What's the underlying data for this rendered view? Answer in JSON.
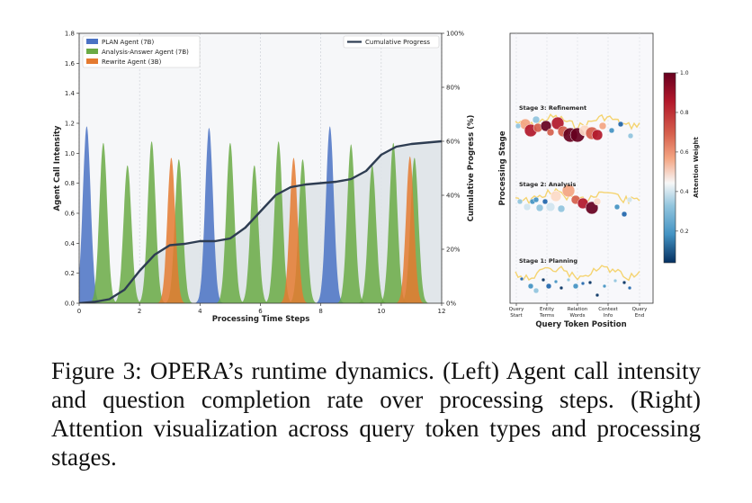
{
  "caption": "Figure 3: OPERA’s runtime dynamics. (Left) Agent call intensity and question completion rate over processing steps. (Right) Attention visualization across query token types and processing stages.",
  "colors": {
    "plan": "#4a72c4",
    "analysis": "#6aaa45",
    "rewrite": "#e47a30",
    "progress": "#2e3d52",
    "progress_fill": "#dfe3e8"
  },
  "chart_data": [
    {
      "type": "area",
      "xlabel": "Processing Time Steps",
      "ylabel": "Agent Call Intensity",
      "y2label": "Cumulative Progress (%)",
      "xlim": [
        0,
        12
      ],
      "ylim": [
        0,
        1.8
      ],
      "y2lim": [
        0,
        100
      ],
      "xticks": [
        "0",
        "2",
        "4",
        "6",
        "8",
        "10",
        "12"
      ],
      "yticks": [
        "0.0",
        "0.2",
        "0.4",
        "0.6",
        "0.8",
        "1.0",
        "1.2",
        "1.4",
        "1.6",
        "1.8"
      ],
      "y2ticks": [
        "0%",
        "20%",
        "40%",
        "60%",
        "80%",
        "100%"
      ],
      "grid": true,
      "legend_position": "top-left",
      "legend2_position": "top-right",
      "series": [
        {
          "name": "PLAN Agent (7B)",
          "centers": [
            0.25,
            4.3,
            8.3
          ],
          "peaks": [
            1.18,
            1.17,
            1.18
          ]
        },
        {
          "name": "Analysis-Answer Agent (7B)",
          "centers": [
            0.8,
            1.6,
            2.4,
            3.3,
            5.0,
            5.8,
            6.6,
            7.4,
            9.0,
            9.7,
            10.4,
            11.1
          ],
          "peaks": [
            1.07,
            0.92,
            1.08,
            0.96,
            1.07,
            0.92,
            1.08,
            0.96,
            1.06,
            0.92,
            1.07,
            0.97
          ]
        },
        {
          "name": "Rewrite Agent (3B)",
          "centers": [
            3.05,
            7.1,
            10.95
          ],
          "peaks": [
            0.97,
            0.97,
            0.98
          ]
        }
      ],
      "progress": {
        "name": "Cumulative Progress",
        "x": [
          0,
          0.5,
          1,
          1.5,
          2,
          2.5,
          3,
          3.5,
          4,
          4.5,
          5,
          5.5,
          6,
          6.5,
          7,
          7.5,
          8,
          8.5,
          9,
          9.5,
          10,
          10.5,
          11,
          11.5,
          12
        ],
        "y": [
          0,
          0.5,
          1.5,
          5,
          12,
          18,
          21.5,
          22,
          23,
          23,
          24,
          28,
          34,
          40,
          43,
          44,
          44.5,
          45,
          46,
          49,
          55,
          58,
          59,
          59.5,
          60
        ]
      }
    },
    {
      "type": "scatter",
      "xlabel": "Query Token Position",
      "ylabel": "Processing Stage",
      "colorbar_label": "Attention Weight",
      "colorbar_ticks": [
        "0.2",
        "0.4",
        "0.6",
        "0.8",
        "1.0"
      ],
      "xticks": [
        [
          "Query",
          "Start"
        ],
        [
          "Entity",
          "Terms"
        ],
        [
          "Relation",
          "Words"
        ],
        [
          "Context",
          "Info"
        ],
        [
          "Query",
          "End"
        ]
      ],
      "stages": [
        "Stage 3: Refinement",
        "Stage 2: Analysis",
        "Stage 1: Planning"
      ]
    }
  ]
}
